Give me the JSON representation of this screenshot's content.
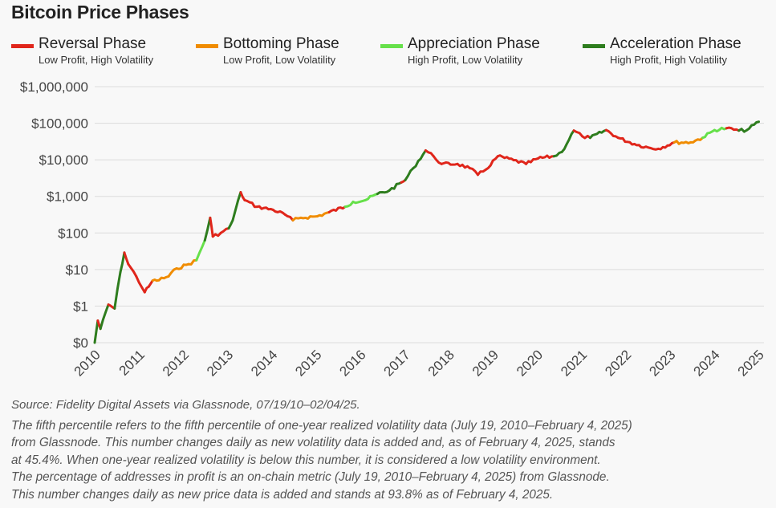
{
  "title": "Bitcoin Price Phases",
  "legend": [
    {
      "label": "Reversal Phase",
      "sub": "Low Profit, High Volatility",
      "color": "#e0261b"
    },
    {
      "label": "Bottoming Phase",
      "sub": "Low Profit, Low Volatility",
      "color": "#f08c00"
    },
    {
      "label": "Appreciation Phase",
      "sub": "High Profit, Low Volatility",
      "color": "#66e04a"
    },
    {
      "label": "Acceleration Phase",
      "sub": "High Profit, High Volatility",
      "color": "#2e7d1e"
    }
  ],
  "source": "Source: Fidelity Digital Assets via Glassnode, 07/19/10–02/04/25.",
  "notes": [
    "The fifth percentile refers to the fifth percentile of one-year realized volatility data (July 19, 2010–February 4, 2025)",
    "from Glassnode. This number changes daily as new volatility data is added and, as of February 4, 2025, stands",
    "at 45.4%. When one-year realized volatility is below this number, it is considered a low volatility environment.",
    "The percentage of addresses in profit is an on-chain metric (July 19, 2010–February 4, 2025) from Glassnode.",
    "This number changes daily as new price data is added and stands at 93.8% as of February 4, 2025."
  ],
  "chart_data": {
    "type": "line",
    "title": "Bitcoin Price Phases",
    "y_scale": "log",
    "ylim": [
      0.1,
      1000000
    ],
    "xlim": [
      2010,
      2025
    ],
    "grid": "horizontal",
    "legend_position": "top",
    "y_ticks": [
      {
        "value": 1000000,
        "label": "$1,000,000"
      },
      {
        "value": 100000,
        "label": "$100,000"
      },
      {
        "value": 10000,
        "label": "$10,000"
      },
      {
        "value": 1000,
        "label": "$1,000"
      },
      {
        "value": 100,
        "label": "$100"
      },
      {
        "value": 10,
        "label": "$10"
      },
      {
        "value": 1,
        "label": "$1"
      },
      {
        "value": 0.1,
        "label": "$0"
      }
    ],
    "x_ticks": [
      "2010",
      "2011",
      "2012",
      "2013",
      "2014",
      "2015",
      "2016",
      "2017",
      "2018",
      "2019",
      "2020",
      "2021",
      "2022",
      "2023",
      "2024",
      "2025"
    ],
    "series": [
      {
        "year": 2010.0,
        "price": 0.1,
        "phase": "Acceleration Phase"
      },
      {
        "year": 2010.07,
        "price": 0.4,
        "phase": "Acceleration Phase"
      },
      {
        "year": 2010.13,
        "price": 0.24,
        "phase": "Reversal Phase"
      },
      {
        "year": 2010.31,
        "price": 1.1,
        "phase": "Acceleration Phase"
      },
      {
        "year": 2010.45,
        "price": 0.86,
        "phase": "Reversal Phase"
      },
      {
        "year": 2010.58,
        "price": 8.4,
        "phase": "Acceleration Phase"
      },
      {
        "year": 2010.67,
        "price": 29,
        "phase": "Acceleration Phase"
      },
      {
        "year": 2010.76,
        "price": 14,
        "phase": "Reversal Phase"
      },
      {
        "year": 2010.94,
        "price": 6.5,
        "phase": "Reversal Phase"
      },
      {
        "year": 2011.13,
        "price": 2.4,
        "phase": "Reversal Phase"
      },
      {
        "year": 2011.22,
        "price": 3.4,
        "phase": "Reversal Phase"
      },
      {
        "year": 2011.31,
        "price": 5,
        "phase": "Reversal Phase"
      },
      {
        "year": 2011.4,
        "price": 5,
        "phase": "Bottoming Phase"
      },
      {
        "year": 2011.67,
        "price": 6.5,
        "phase": "Bottoming Phase"
      },
      {
        "year": 2011.85,
        "price": 10.7,
        "phase": "Bottoming Phase"
      },
      {
        "year": 2012.12,
        "price": 14,
        "phase": "Bottoming Phase"
      },
      {
        "year": 2012.3,
        "price": 18,
        "phase": "Bottoming Phase"
      },
      {
        "year": 2012.49,
        "price": 63,
        "phase": "Appreciation Phase"
      },
      {
        "year": 2012.61,
        "price": 260,
        "phase": "Acceleration Phase"
      },
      {
        "year": 2012.67,
        "price": 80,
        "phase": "Reversal Phase"
      },
      {
        "year": 2012.85,
        "price": 100,
        "phase": "Reversal Phase"
      },
      {
        "year": 2013.03,
        "price": 134,
        "phase": "Reversal Phase"
      },
      {
        "year": 2013.12,
        "price": 222,
        "phase": "Acceleration Phase"
      },
      {
        "year": 2013.3,
        "price": 1300,
        "phase": "Acceleration Phase"
      },
      {
        "year": 2013.39,
        "price": 790,
        "phase": "Reversal Phase"
      },
      {
        "year": 2013.67,
        "price": 520,
        "phase": "Reversal Phase"
      },
      {
        "year": 2014.03,
        "price": 430,
        "phase": "Reversal Phase"
      },
      {
        "year": 2014.3,
        "price": 320,
        "phase": "Reversal Phase"
      },
      {
        "year": 2014.48,
        "price": 222,
        "phase": "Reversal Phase"
      },
      {
        "year": 2014.66,
        "price": 260,
        "phase": "Bottoming Phase"
      },
      {
        "year": 2015.03,
        "price": 285,
        "phase": "Bottoming Phase"
      },
      {
        "year": 2015.3,
        "price": 370,
        "phase": "Bottoming Phase"
      },
      {
        "year": 2015.66,
        "price": 520,
        "phase": "Reversal Phase"
      },
      {
        "year": 2015.84,
        "price": 710,
        "phase": "Appreciation Phase"
      },
      {
        "year": 2016.12,
        "price": 790,
        "phase": "Appreciation Phase"
      },
      {
        "year": 2016.39,
        "price": 1170,
        "phase": "Appreciation Phase"
      },
      {
        "year": 2016.66,
        "price": 1450,
        "phase": "Acceleration Phase"
      },
      {
        "year": 2016.93,
        "price": 2400,
        "phase": "Acceleration Phase"
      },
      {
        "year": 2017.02,
        "price": 2800,
        "phase": "Reversal Phase"
      },
      {
        "year": 2017.2,
        "price": 5900,
        "phase": "Acceleration Phase"
      },
      {
        "year": 2017.48,
        "price": 18000,
        "phase": "Acceleration Phase"
      },
      {
        "year": 2017.66,
        "price": 12500,
        "phase": "Reversal Phase"
      },
      {
        "year": 2017.84,
        "price": 7700,
        "phase": "Reversal Phase"
      },
      {
        "year": 2018.2,
        "price": 7700,
        "phase": "Reversal Phase"
      },
      {
        "year": 2018.48,
        "price": 5900,
        "phase": "Reversal Phase"
      },
      {
        "year": 2018.66,
        "price": 3900,
        "phase": "Reversal Phase"
      },
      {
        "year": 2018.84,
        "price": 5400,
        "phase": "Reversal Phase"
      },
      {
        "year": 2019.11,
        "price": 12500,
        "phase": "Reversal Phase"
      },
      {
        "year": 2019.47,
        "price": 9800,
        "phase": "Reversal Phase"
      },
      {
        "year": 2019.75,
        "price": 7700,
        "phase": "Reversal Phase"
      },
      {
        "year": 2020.02,
        "price": 10900,
        "phase": "Reversal Phase"
      },
      {
        "year": 2020.38,
        "price": 12500,
        "phase": "Reversal Phase"
      },
      {
        "year": 2020.56,
        "price": 16400,
        "phase": "Acceleration Phase"
      },
      {
        "year": 2020.83,
        "price": 63000,
        "phase": "Acceleration Phase"
      },
      {
        "year": 2021.02,
        "price": 44000,
        "phase": "Reversal Phase"
      },
      {
        "year": 2021.2,
        "price": 40000,
        "phase": "Reversal Phase"
      },
      {
        "year": 2021.56,
        "price": 65000,
        "phase": "Acceleration Phase"
      },
      {
        "year": 2021.83,
        "price": 40000,
        "phase": "Reversal Phase"
      },
      {
        "year": 2022.2,
        "price": 27000,
        "phase": "Reversal Phase"
      },
      {
        "year": 2022.56,
        "price": 21000,
        "phase": "Reversal Phase"
      },
      {
        "year": 2022.74,
        "price": 20000,
        "phase": "Reversal Phase"
      },
      {
        "year": 2023.1,
        "price": 30000,
        "phase": "Reversal Phase"
      },
      {
        "year": 2023.47,
        "price": 30000,
        "phase": "Bottoming Phase"
      },
      {
        "year": 2023.74,
        "price": 40000,
        "phase": "Bottoming Phase"
      },
      {
        "year": 2024.01,
        "price": 65000,
        "phase": "Appreciation Phase"
      },
      {
        "year": 2024.28,
        "price": 73000,
        "phase": "Appreciation Phase"
      },
      {
        "year": 2024.56,
        "price": 63000,
        "phase": "Reversal Phase"
      },
      {
        "year": 2024.74,
        "price": 65000,
        "phase": "Acceleration Phase"
      },
      {
        "year": 2025.01,
        "price": 110000,
        "phase": "Acceleration Phase"
      }
    ]
  }
}
